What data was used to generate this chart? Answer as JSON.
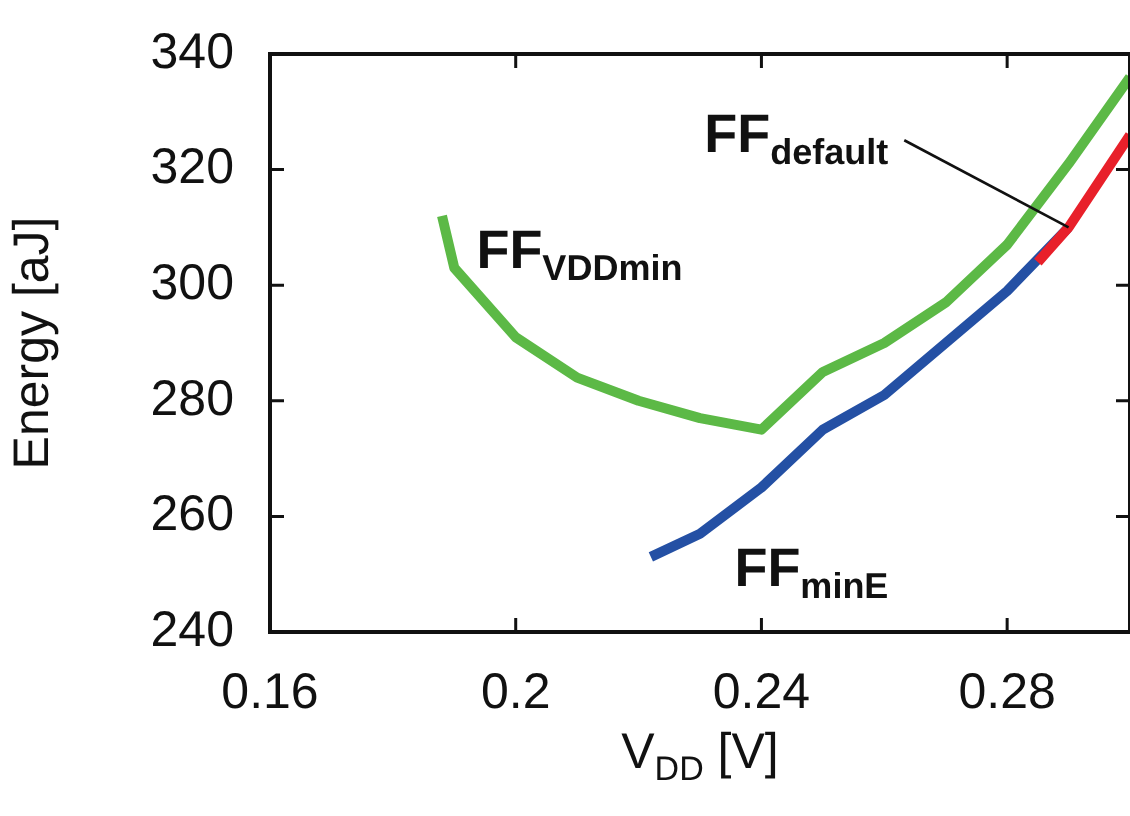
{
  "chart_data": {
    "type": "line",
    "xlabel": "V$_{DD}$ [V]",
    "ylabel": "Energy [aJ]",
    "xlim": [
      0.16,
      0.3
    ],
    "ylim": [
      240,
      340
    ],
    "xticks": [
      0.16,
      0.2,
      0.24,
      0.28
    ],
    "yticks": [
      240,
      260,
      280,
      300,
      320,
      340
    ],
    "grid": false,
    "series": [
      {
        "name": "FF$_{VDDmin}$",
        "color": "#5cb946",
        "x": [
          0.188,
          0.19,
          0.2,
          0.21,
          0.22,
          0.23,
          0.24,
          0.25,
          0.26,
          0.27,
          0.28,
          0.29,
          0.3
        ],
        "values": [
          312,
          303,
          291,
          284,
          280,
          277,
          275,
          285,
          290,
          297,
          307,
          321,
          336
        ]
      },
      {
        "name": "FF$_{minE}$",
        "color": "#2450a4",
        "x": [
          0.222,
          0.23,
          0.24,
          0.25,
          0.26,
          0.27,
          0.28,
          0.29
        ],
        "values": [
          253,
          257,
          265,
          275,
          281,
          290,
          299,
          310
        ]
      },
      {
        "name": "FF$_{default}$",
        "color": "#e8202a",
        "x": [
          0.285,
          0.29,
          0.3
        ],
        "values": [
          304,
          310,
          326
        ]
      }
    ]
  }
}
